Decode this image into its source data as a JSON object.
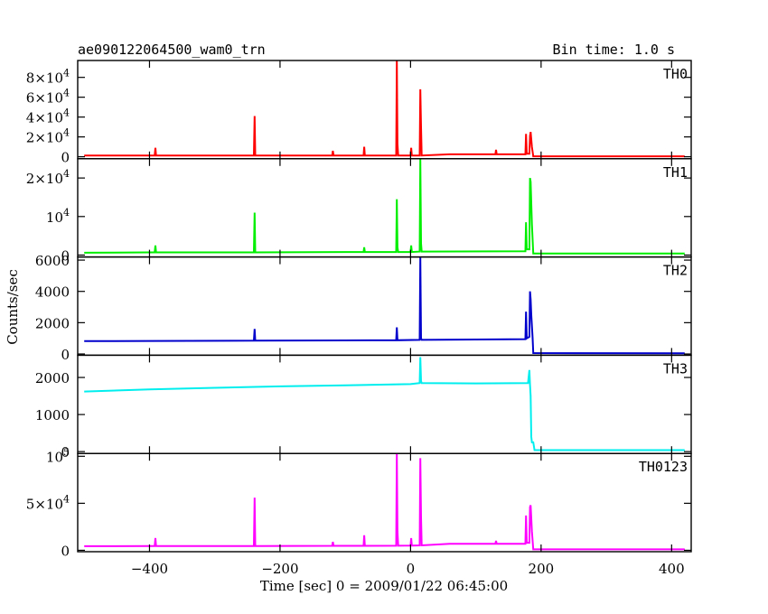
{
  "header": {
    "left_title": "ae090122064500_wam0_trn",
    "right_title": "Bin time: 1.0 s"
  },
  "chart_data": {
    "type": "line",
    "xlabel": "Time [sec] 0 = 2009/01/22 06:45:00",
    "ylabel": "Counts/sec",
    "xlim": [
      -510,
      430
    ],
    "xticks": [
      -400,
      -200,
      0,
      200,
      400
    ],
    "panels": [
      {
        "name": "TH0",
        "color": "#ff0000",
        "ylim": [
          -2000,
          97000
        ],
        "yticks": [
          {
            "v": 0,
            "label": "0",
            "base": "",
            "exp": ""
          },
          {
            "v": 20000,
            "label": "",
            "base": "2×10",
            "exp": "4"
          },
          {
            "v": 40000,
            "label": "",
            "base": "4×10",
            "exp": "4"
          },
          {
            "v": 60000,
            "label": "",
            "base": "6×10",
            "exp": "4"
          },
          {
            "v": 80000,
            "label": "",
            "base": "8×10",
            "exp": "4"
          }
        ],
        "points": [
          [
            -500,
            1200
          ],
          [
            -400,
            1300
          ],
          [
            -392,
            1300
          ],
          [
            -391,
            9000
          ],
          [
            -390,
            1300
          ],
          [
            -300,
            1300
          ],
          [
            -240,
            1300
          ],
          [
            -239,
            41000
          ],
          [
            -238,
            1300
          ],
          [
            -120,
            1300
          ],
          [
            -119,
            6000
          ],
          [
            -118,
            1300
          ],
          [
            -72,
            1300
          ],
          [
            -71,
            10000
          ],
          [
            -70,
            1300
          ],
          [
            -22,
            1300
          ],
          [
            -21,
            97000
          ],
          [
            -20,
            13000
          ],
          [
            -19,
            1300
          ],
          [
            0,
            1300
          ],
          [
            1,
            9000
          ],
          [
            2,
            1300
          ],
          [
            14,
            1300
          ],
          [
            15,
            68000
          ],
          [
            16,
            30000
          ],
          [
            17,
            1300
          ],
          [
            60,
            2500
          ],
          [
            130,
            2500
          ],
          [
            131,
            7000
          ],
          [
            132,
            2500
          ],
          [
            176,
            2500
          ],
          [
            177,
            23000
          ],
          [
            178,
            3000
          ],
          [
            182,
            3000
          ],
          [
            183,
            21000
          ],
          [
            184,
            25000
          ],
          [
            186,
            10000
          ],
          [
            188,
            500
          ],
          [
            200,
            500
          ],
          [
            420,
            500
          ]
        ]
      },
      {
        "name": "TH1",
        "color": "#00ee00",
        "ylim": [
          -500,
          25000
        ],
        "yticks": [
          {
            "v": 0,
            "label": "0",
            "base": "",
            "exp": ""
          },
          {
            "v": 10000,
            "label": "",
            "base": "10",
            "exp": "4"
          },
          {
            "v": 20000,
            "label": "",
            "base": "2×10",
            "exp": "4"
          }
        ],
        "points": [
          [
            -500,
            600
          ],
          [
            -400,
            700
          ],
          [
            -392,
            700
          ],
          [
            -391,
            2500
          ],
          [
            -390,
            700
          ],
          [
            -240,
            700
          ],
          [
            -239,
            11000
          ],
          [
            -238,
            700
          ],
          [
            -72,
            800
          ],
          [
            -71,
            2000
          ],
          [
            -70,
            800
          ],
          [
            -22,
            800
          ],
          [
            -21,
            14500
          ],
          [
            -20,
            2000
          ],
          [
            -19,
            800
          ],
          [
            0,
            800
          ],
          [
            1,
            2500
          ],
          [
            2,
            800
          ],
          [
            14,
            900
          ],
          [
            15,
            25000
          ],
          [
            16,
            3000
          ],
          [
            17,
            900
          ],
          [
            176,
            1000
          ],
          [
            177,
            8500
          ],
          [
            178,
            1500
          ],
          [
            182,
            1500
          ],
          [
            183,
            20000
          ],
          [
            184,
            19000
          ],
          [
            186,
            8000
          ],
          [
            188,
            400
          ],
          [
            420,
            400
          ]
        ]
      },
      {
        "name": "TH2",
        "color": "#0000cc",
        "ylim": [
          -80,
          6200
        ],
        "yticks": [
          {
            "v": 0,
            "label": "0",
            "base": "",
            "exp": ""
          },
          {
            "v": 2000,
            "label": "2000",
            "base": "",
            "exp": ""
          },
          {
            "v": 4000,
            "label": "4000",
            "base": "",
            "exp": ""
          },
          {
            "v": 6000,
            "label": "6000",
            "base": "",
            "exp": ""
          }
        ],
        "points": [
          [
            -500,
            820
          ],
          [
            -400,
            830
          ],
          [
            -240,
            850
          ],
          [
            -239,
            1600
          ],
          [
            -238,
            850
          ],
          [
            -22,
            880
          ],
          [
            -21,
            1700
          ],
          [
            -20,
            880
          ],
          [
            14,
            900
          ],
          [
            15,
            6200
          ],
          [
            16,
            1000
          ],
          [
            17,
            900
          ],
          [
            176,
            950
          ],
          [
            177,
            2700
          ],
          [
            178,
            1000
          ],
          [
            182,
            1100
          ],
          [
            183,
            4000
          ],
          [
            184,
            3500
          ],
          [
            185,
            2500
          ],
          [
            187,
            1000
          ],
          [
            188,
            60
          ],
          [
            420,
            40
          ]
        ]
      },
      {
        "name": "TH3",
        "color": "#00eeee",
        "ylim": [
          -50,
          2600
        ],
        "yticks": [
          {
            "v": 0,
            "label": "0",
            "base": "",
            "exp": ""
          },
          {
            "v": 1000,
            "label": "1000",
            "base": "",
            "exp": ""
          },
          {
            "v": 2000,
            "label": "2000",
            "base": "",
            "exp": ""
          }
        ],
        "points": [
          [
            -500,
            1620
          ],
          [
            -400,
            1680
          ],
          [
            -300,
            1720
          ],
          [
            -200,
            1760
          ],
          [
            -100,
            1790
          ],
          [
            0,
            1820
          ],
          [
            14,
            1850
          ],
          [
            15,
            2550
          ],
          [
            16,
            1900
          ],
          [
            17,
            1850
          ],
          [
            100,
            1840
          ],
          [
            180,
            1850
          ],
          [
            182,
            2200
          ],
          [
            183,
            1800
          ],
          [
            184,
            1500
          ],
          [
            185,
            400
          ],
          [
            186,
            250
          ],
          [
            188,
            250
          ],
          [
            190,
            40
          ],
          [
            420,
            40
          ]
        ]
      },
      {
        "name": "TH0123",
        "color": "#ff00ff",
        "ylim": [
          -1500,
          103000
        ],
        "yticks": [
          {
            "v": 0,
            "label": "0",
            "base": "",
            "exp": ""
          },
          {
            "v": 50000,
            "label": "",
            "base": "5×10",
            "exp": "4"
          },
          {
            "v": 100000,
            "label": "",
            "base": "10",
            "exp": "5"
          }
        ],
        "points": [
          [
            -500,
            4400
          ],
          [
            -400,
            4500
          ],
          [
            -392,
            4500
          ],
          [
            -391,
            13000
          ],
          [
            -390,
            4500
          ],
          [
            -240,
            4500
          ],
          [
            -239,
            56000
          ],
          [
            -238,
            4500
          ],
          [
            -120,
            4700
          ],
          [
            -119,
            9000
          ],
          [
            -118,
            4700
          ],
          [
            -72,
            4700
          ],
          [
            -71,
            16000
          ],
          [
            -70,
            4700
          ],
          [
            -22,
            4800
          ],
          [
            -21,
            103000
          ],
          [
            -20,
            20000
          ],
          [
            -19,
            4800
          ],
          [
            0,
            5000
          ],
          [
            1,
            13000
          ],
          [
            2,
            5000
          ],
          [
            14,
            5200
          ],
          [
            15,
            98000
          ],
          [
            16,
            35000
          ],
          [
            17,
            5200
          ],
          [
            60,
            7000
          ],
          [
            130,
            7000
          ],
          [
            131,
            10000
          ],
          [
            132,
            7000
          ],
          [
            176,
            7000
          ],
          [
            177,
            37000
          ],
          [
            178,
            8000
          ],
          [
            182,
            8000
          ],
          [
            183,
            46000
          ],
          [
            184,
            48000
          ],
          [
            186,
            20000
          ],
          [
            188,
            1000
          ],
          [
            420,
            1000
          ]
        ]
      }
    ]
  }
}
